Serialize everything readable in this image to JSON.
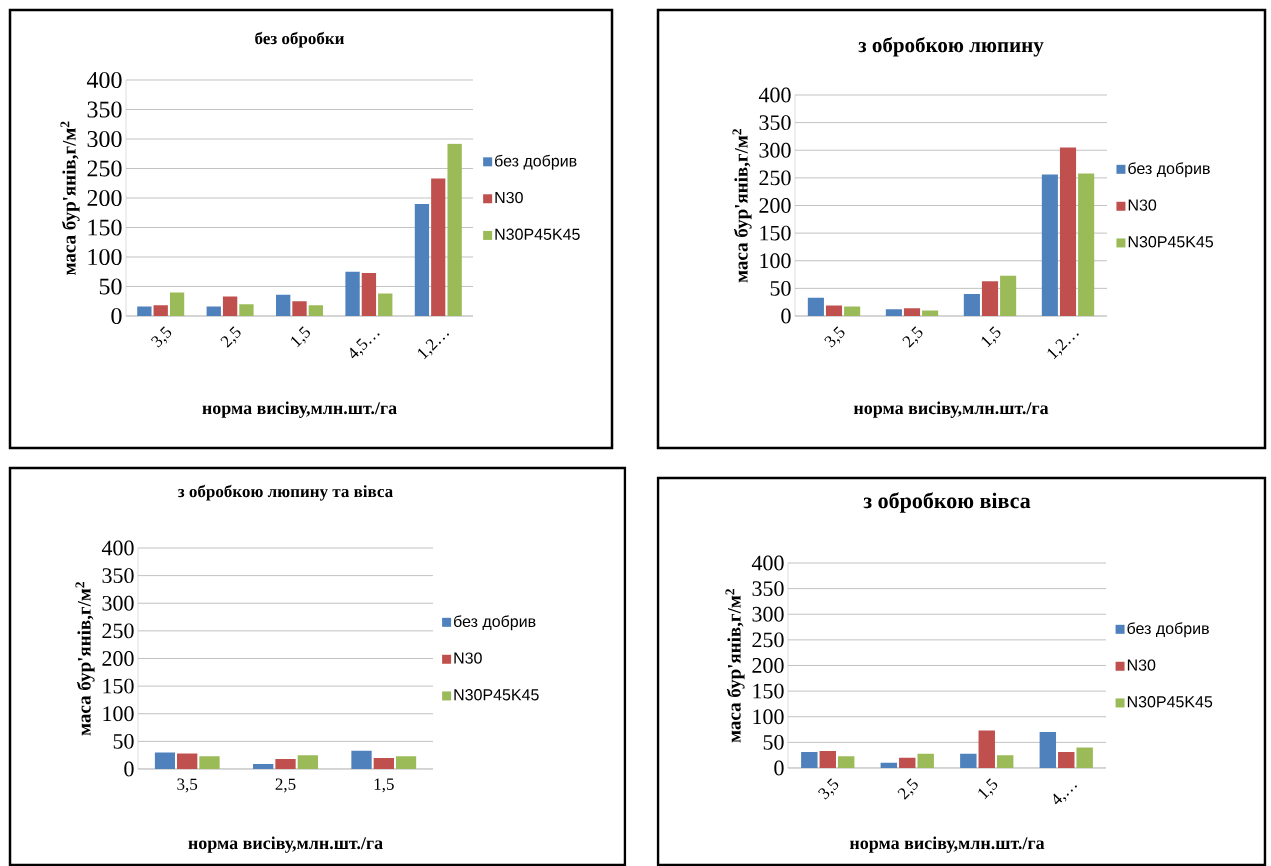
{
  "chart_data": [
    {
      "type": "bar",
      "title": "без обробки",
      "xlabel": "норма висіву,млн.шт./га",
      "ylabel": "маса бур'янів,г/м$^{2}$",
      "categories": [
        "3,5",
        "2,5",
        "1,5",
        "4,5…",
        "1,2…"
      ],
      "ylim": [
        0,
        400
      ],
      "yticks": [
        0,
        50,
        100,
        150,
        200,
        250,
        300,
        350,
        400
      ],
      "grid": "y",
      "legend": "right",
      "series": [
        {
          "name": "без добрив",
          "color": "#4f81bd",
          "values": [
            16,
            16,
            36,
            75,
            190
          ]
        },
        {
          "name": "N30",
          "color": "#c0504d",
          "values": [
            18,
            33,
            25,
            73,
            233
          ]
        },
        {
          "name": "N30P45K45",
          "color": "#9bbb59",
          "values": [
            40,
            20,
            18,
            38,
            292
          ]
        }
      ]
    },
    {
      "type": "bar",
      "title": "з обробкою люпину",
      "xlabel": "норма висіву,млн.шт./га",
      "ylabel": "маса бур'янів,г/м$^{2}$",
      "categories": [
        "3,5",
        "2,5",
        "1,5",
        "1,2…"
      ],
      "ylim": [
        0,
        400
      ],
      "yticks": [
        0,
        50,
        100,
        150,
        200,
        250,
        300,
        350,
        400
      ],
      "grid": "y",
      "legend": "right",
      "series": [
        {
          "name": "без добрив",
          "color": "#4f81bd",
          "values": [
            33,
            12,
            40,
            256
          ]
        },
        {
          "name": "N30",
          "color": "#c0504d",
          "values": [
            19,
            14,
            63,
            305
          ]
        },
        {
          "name": "N30P45K45",
          "color": "#9bbb59",
          "values": [
            17,
            10,
            73,
            258
          ]
        }
      ]
    },
    {
      "type": "bar",
      "title": "з обробкою люпину та вівса",
      "xlabel": "норма висіву,млн.шт./га",
      "ylabel": "маса бур'янів,г/м$^{2}$",
      "categories": [
        "3,5",
        "2,5",
        "1,5"
      ],
      "ylim": [
        0,
        400
      ],
      "yticks": [
        0,
        50,
        100,
        150,
        200,
        250,
        300,
        350,
        400
      ],
      "grid": "y",
      "legend": "right",
      "series": [
        {
          "name": "без добрив",
          "color": "#4f81bd",
          "values": [
            30,
            9,
            33
          ]
        },
        {
          "name": "N30",
          "color": "#c0504d",
          "values": [
            28,
            18,
            20
          ]
        },
        {
          "name": "N30P45K45",
          "color": "#9bbb59",
          "values": [
            23,
            25,
            23
          ]
        }
      ]
    },
    {
      "type": "bar",
      "title": "з обробкою вівса",
      "xlabel": "норма висіву,млн.шт./га",
      "ylabel": "маса бур'янів,г/м$^{2}$",
      "categories": [
        "3,5",
        "2,5",
        "1,5",
        "4,…"
      ],
      "ylim": [
        0,
        400
      ],
      "yticks": [
        0,
        50,
        100,
        150,
        200,
        250,
        300,
        350,
        400
      ],
      "grid": "y",
      "legend": "right",
      "series": [
        {
          "name": "без добрив",
          "color": "#4f81bd",
          "values": [
            31,
            10,
            28,
            70
          ]
        },
        {
          "name": "N30",
          "color": "#c0504d",
          "values": [
            33,
            20,
            73,
            31
          ]
        },
        {
          "name": "N30P45K45",
          "color": "#9bbb59",
          "values": [
            23,
            28,
            25,
            40
          ]
        }
      ]
    }
  ]
}
